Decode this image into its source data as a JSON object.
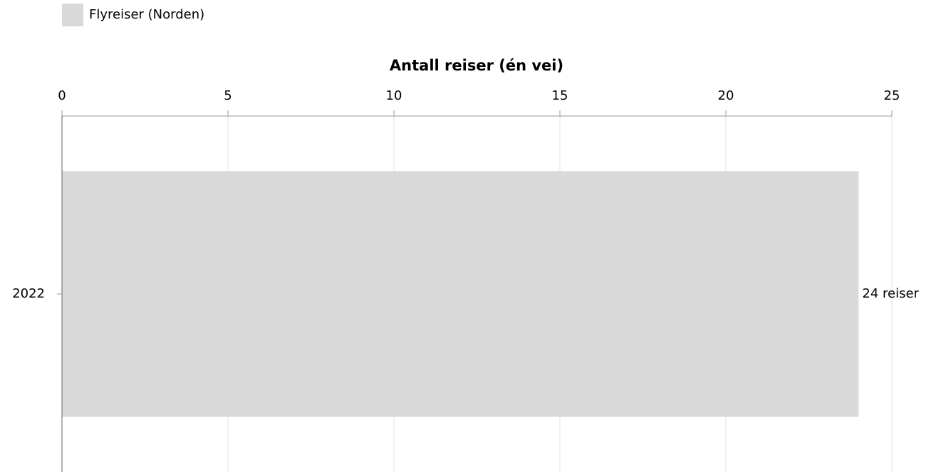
{
  "chart_data": {
    "type": "bar",
    "orientation": "horizontal",
    "x_label": "Antall reiser (én vei)",
    "categories": [
      "2022"
    ],
    "series": [
      {
        "name": "Flyreiser (Norden)",
        "color": "#d9d9d9",
        "values": [
          24
        ],
        "value_labels": [
          "24 reiser"
        ]
      }
    ],
    "xlim": [
      0,
      25
    ],
    "xticks": [
      0,
      5,
      10,
      15,
      20,
      25
    ],
    "grid": true,
    "legend": "top-left"
  }
}
